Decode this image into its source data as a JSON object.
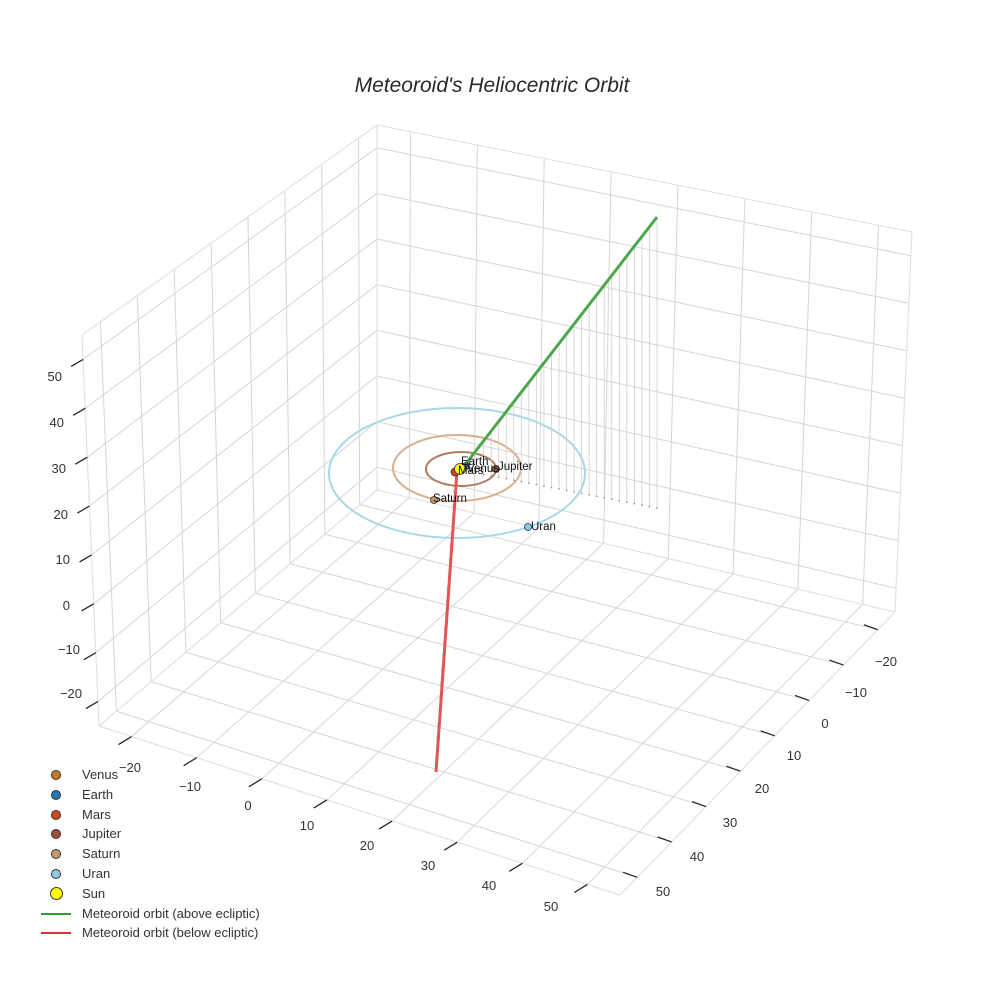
{
  "chart_data": {
    "type": "scatter3d",
    "title": "Meteoroid's Heliocentric Orbit",
    "axes": {
      "x": {
        "label": "",
        "ticks": [
          -20,
          -10,
          0,
          10,
          20,
          30,
          40,
          50
        ],
        "range": [
          -25,
          55
        ]
      },
      "y": {
        "label": "",
        "ticks": [
          -20,
          -10,
          0,
          10,
          20,
          30,
          40,
          50
        ],
        "range": [
          -25,
          55
        ]
      },
      "z": {
        "label": "",
        "ticks": [
          -20,
          -10,
          0,
          10,
          20,
          30,
          40,
          50
        ],
        "range": [
          -25,
          55
        ]
      }
    },
    "grid": true,
    "legend_position": "bottom-left",
    "series": [
      {
        "name": "Venus",
        "type": "marker",
        "color": "#c87a1e",
        "label": "Venus",
        "orbit_radius_au": 0.72
      },
      {
        "name": "Earth",
        "type": "marker",
        "color": "#1f77b4",
        "label": "Earth",
        "orbit_radius_au": 1.0
      },
      {
        "name": "Mars",
        "type": "marker",
        "color": "#d2461e",
        "label": "Mars",
        "orbit_radius_au": 1.52
      },
      {
        "name": "Jupiter",
        "type": "marker",
        "color": "#a0522d",
        "label": "Jupiter",
        "orbit_radius_au": 5.2
      },
      {
        "name": "Saturn",
        "type": "marker",
        "color": "#c49a6c",
        "label": "Saturn",
        "orbit_radius_au": 9.5
      },
      {
        "name": "Uran",
        "type": "marker",
        "color": "#8ecae6",
        "label": "Uran",
        "orbit_radius_au": 19.2
      },
      {
        "name": "Sun",
        "type": "marker",
        "color": "#ffff00",
        "label": "",
        "position": [
          0,
          0,
          0
        ]
      },
      {
        "name": "Meteoroid orbit (above ecliptic)",
        "type": "line",
        "color": "#2e9b2e",
        "approx_endpoint": [
          40,
          -20,
          50
        ]
      },
      {
        "name": "Meteoroid orbit (below ecliptic)",
        "type": "line",
        "color": "#e03131",
        "approx_endpoint": [
          30,
          20,
          -25
        ]
      }
    ]
  },
  "title": "Meteoroid's Heliocentric Orbit",
  "axes": {
    "z_ticks": [
      "50",
      "40",
      "30",
      "20",
      "10",
      "0",
      "−10",
      "−20"
    ],
    "x_ticks": [
      "−20",
      "−10",
      "0",
      "10",
      "20",
      "30",
      "40",
      "50"
    ],
    "y_ticks": [
      "−20",
      "−10",
      "0",
      "10",
      "20",
      "30",
      "40",
      "50"
    ]
  },
  "labels": {
    "earth": "Earth",
    "venus": "Venus",
    "mars": "Mars",
    "jupiter": "Jupiter",
    "saturn": "Saturn",
    "uran": "Uran"
  },
  "colors": {
    "venus": "#c87a1e",
    "earth": "#1f77b4",
    "mars": "#d2461e",
    "jupiter": "#a0522d",
    "saturn": "#c49a6c",
    "uran": "#8ecae6",
    "sun": "#ffff00",
    "above": "#2e9b2e",
    "below": "#e03131"
  },
  "legend": {
    "items": [
      {
        "label": "Venus",
        "kind": "marker",
        "color": "#c87a1e"
      },
      {
        "label": "Earth",
        "kind": "marker",
        "color": "#1f77b4"
      },
      {
        "label": "Mars",
        "kind": "marker",
        "color": "#d2461e"
      },
      {
        "label": "Jupiter",
        "kind": "marker",
        "color": "#a0522d"
      },
      {
        "label": "Saturn",
        "kind": "marker",
        "color": "#c49a6c"
      },
      {
        "label": "Uran",
        "kind": "marker",
        "color": "#8ecae6"
      },
      {
        "label": "Sun",
        "kind": "marker-big",
        "color": "#ffff00"
      },
      {
        "label": "Meteoroid orbit (above ecliptic)",
        "kind": "line",
        "color": "#2e9b2e"
      },
      {
        "label": "Meteoroid orbit (below ecliptic)",
        "kind": "line",
        "color": "#e03131"
      }
    ]
  }
}
